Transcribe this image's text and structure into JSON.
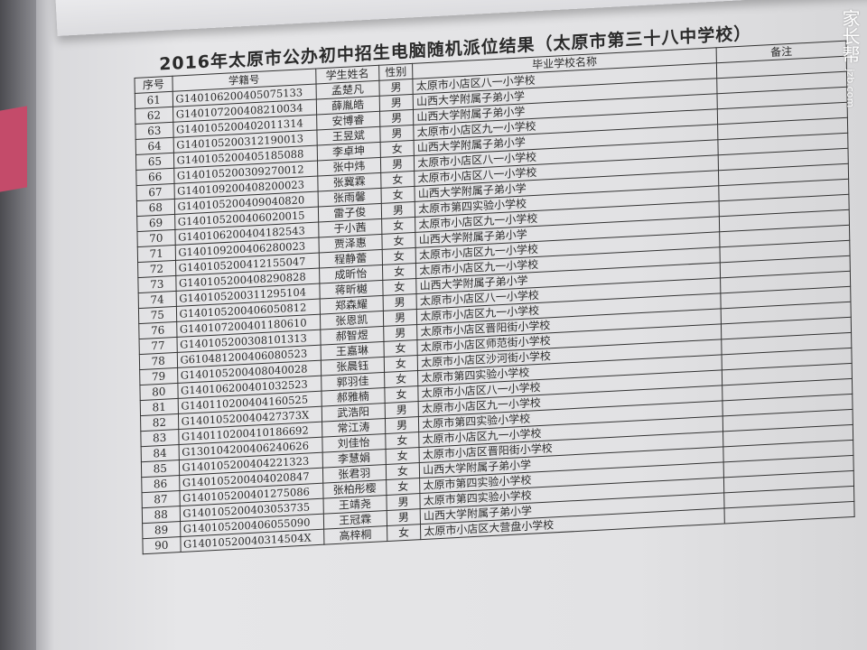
{
  "document": {
    "title": "2016年太原市公办初中招生电脑随机派位结果（太原市第三十八中学校）",
    "headers": {
      "seq": "序号",
      "id": "学籍号",
      "name": "学生姓名",
      "gender": "性别",
      "school": "毕业学校名称",
      "note": "备注"
    },
    "rows": [
      {
        "seq": "61",
        "id": "G140106200405075133",
        "name": "孟楚凡",
        "gender": "男",
        "school": "太原市小店区八一小学校"
      },
      {
        "seq": "62",
        "id": "G140107200408210034",
        "name": "薛胤皓",
        "gender": "男",
        "school": "山西大学附属子弟小学"
      },
      {
        "seq": "63",
        "id": "G140105200402011314",
        "name": "安博睿",
        "gender": "男",
        "school": "山西大学附属子弟小学"
      },
      {
        "seq": "64",
        "id": "G140105200312190013",
        "name": "王昱斌",
        "gender": "男",
        "school": "太原市小店区九一小学校"
      },
      {
        "seq": "65",
        "id": "G140105200405185088",
        "name": "李卓坤",
        "gender": "女",
        "school": "山西大学附属子弟小学"
      },
      {
        "seq": "66",
        "id": "G140105200309270012",
        "name": "张中炜",
        "gender": "男",
        "school": "太原市小店区八一小学校"
      },
      {
        "seq": "67",
        "id": "G140109200408200023",
        "name": "张冀霖",
        "gender": "女",
        "school": "太原市小店区八一小学校"
      },
      {
        "seq": "68",
        "id": "G140105200409040820",
        "name": "张雨馨",
        "gender": "女",
        "school": "山西大学附属子弟小学"
      },
      {
        "seq": "69",
        "id": "G140105200406020015",
        "name": "雷子俊",
        "gender": "男",
        "school": "太原市第四实验小学校"
      },
      {
        "seq": "70",
        "id": "G140106200404182543",
        "name": "于小茜",
        "gender": "女",
        "school": "太原市小店区九一小学校"
      },
      {
        "seq": "71",
        "id": "G140109200406280023",
        "name": "贾泽惠",
        "gender": "女",
        "school": "山西大学附属子弟小学"
      },
      {
        "seq": "72",
        "id": "G140105200412155047",
        "name": "程静蕾",
        "gender": "女",
        "school": "太原市小店区九一小学校"
      },
      {
        "seq": "73",
        "id": "G140105200408290828",
        "name": "成昕怡",
        "gender": "女",
        "school": "太原市小店区九一小学校"
      },
      {
        "seq": "74",
        "id": "G140105200311295104",
        "name": "蒋昕樾",
        "gender": "女",
        "school": "山西大学附属子弟小学"
      },
      {
        "seq": "75",
        "id": "G140105200406050812",
        "name": "郑森耀",
        "gender": "男",
        "school": "太原市小店区八一小学校"
      },
      {
        "seq": "76",
        "id": "G140107200401180610",
        "name": "张恩凯",
        "gender": "男",
        "school": "太原市小店区九一小学校"
      },
      {
        "seq": "77",
        "id": "G140105200308101313",
        "name": "郝智煜",
        "gender": "男",
        "school": "太原市小店区晋阳街小学校"
      },
      {
        "seq": "78",
        "id": "G610481200406080523",
        "name": "王嘉琳",
        "gender": "女",
        "school": "太原市小店区师范街小学校"
      },
      {
        "seq": "79",
        "id": "G140105200408040028",
        "name": "张晨钰",
        "gender": "女",
        "school": "太原市小店区沙河街小学校"
      },
      {
        "seq": "80",
        "id": "G140106200401032523",
        "name": "郭羽佳",
        "gender": "女",
        "school": "太原市第四实验小学校"
      },
      {
        "seq": "81",
        "id": "G140110200404160525",
        "name": "郝雅楠",
        "gender": "女",
        "school": "太原市小店区八一小学校"
      },
      {
        "seq": "82",
        "id": "G14010520040427373X",
        "name": "武浩阳",
        "gender": "男",
        "school": "太原市小店区九一小学校"
      },
      {
        "seq": "83",
        "id": "G140110200410186692",
        "name": "常江涛",
        "gender": "男",
        "school": "太原市第四实验小学校"
      },
      {
        "seq": "84",
        "id": "G130104200406240626",
        "name": "刘佳怡",
        "gender": "女",
        "school": "太原市小店区九一小学校"
      },
      {
        "seq": "85",
        "id": "G140105200404221323",
        "name": "李慧娟",
        "gender": "女",
        "school": "太原市小店区晋阳街小学校"
      },
      {
        "seq": "86",
        "id": "G140105200404020847",
        "name": "张君羽",
        "gender": "女",
        "school": "山西大学附属子弟小学"
      },
      {
        "seq": "87",
        "id": "G140105200401275086",
        "name": "张柏彤樱",
        "gender": "女",
        "school": "太原市第四实验小学校"
      },
      {
        "seq": "88",
        "id": "G140105200403053735",
        "name": "王靖尧",
        "gender": "男",
        "school": "太原市第四实验小学校"
      },
      {
        "seq": "89",
        "id": "G140105200406055090",
        "name": "王冠霖",
        "gender": "男",
        "school": "山西大学附属子弟小学"
      },
      {
        "seq": "90",
        "id": "G14010520040314504X",
        "name": "高梓桐",
        "gender": "女",
        "school": "太原市小店区大营盘小学校"
      }
    ]
  },
  "watermark": {
    "brand": "家长帮",
    "site": "jzb.com"
  }
}
